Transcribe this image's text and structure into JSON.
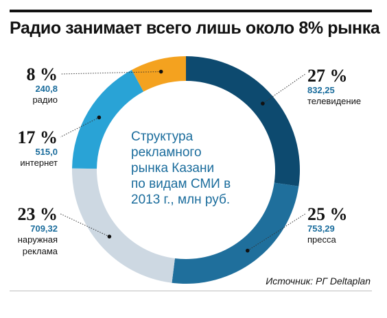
{
  "title": "Радио занимает всего лишь около 8% рынка",
  "center_text": [
    "Структура",
    "рекламного",
    "рынка Казани",
    "по видам СМИ в",
    "2013 г., млн руб."
  ],
  "source": "Источник: РГ Deltaplan",
  "colors": {
    "title": "#111111",
    "accent_text": "#1a6c9c",
    "grid_rule": "#bdbdbd"
  },
  "chart_data": {
    "type": "pie",
    "donut": true,
    "unit": "млн руб.",
    "start": "12 o'clock, clockwise",
    "slices": [
      {
        "name": "телевидение",
        "pct_label": "27 %",
        "value": 832.25,
        "value_label": "832,25",
        "color": "#0d4a6f"
      },
      {
        "name": "пресса",
        "pct_label": "25 %",
        "value": 753.29,
        "value_label": "753,29",
        "color": "#1f6f9c"
      },
      {
        "name": "наружная реклама",
        "pct_label": "23 %",
        "value": 709.32,
        "value_label": "709,32",
        "color": "#cdd8e2"
      },
      {
        "name": "интернет",
        "pct_label": "17 %",
        "value": 515.0,
        "value_label": "515,0",
        "color": "#29a3d6"
      },
      {
        "name": "радио",
        "pct_label": "8 %",
        "value": 240.8,
        "value_label": "240,8",
        "color": "#f4a21f"
      }
    ]
  }
}
